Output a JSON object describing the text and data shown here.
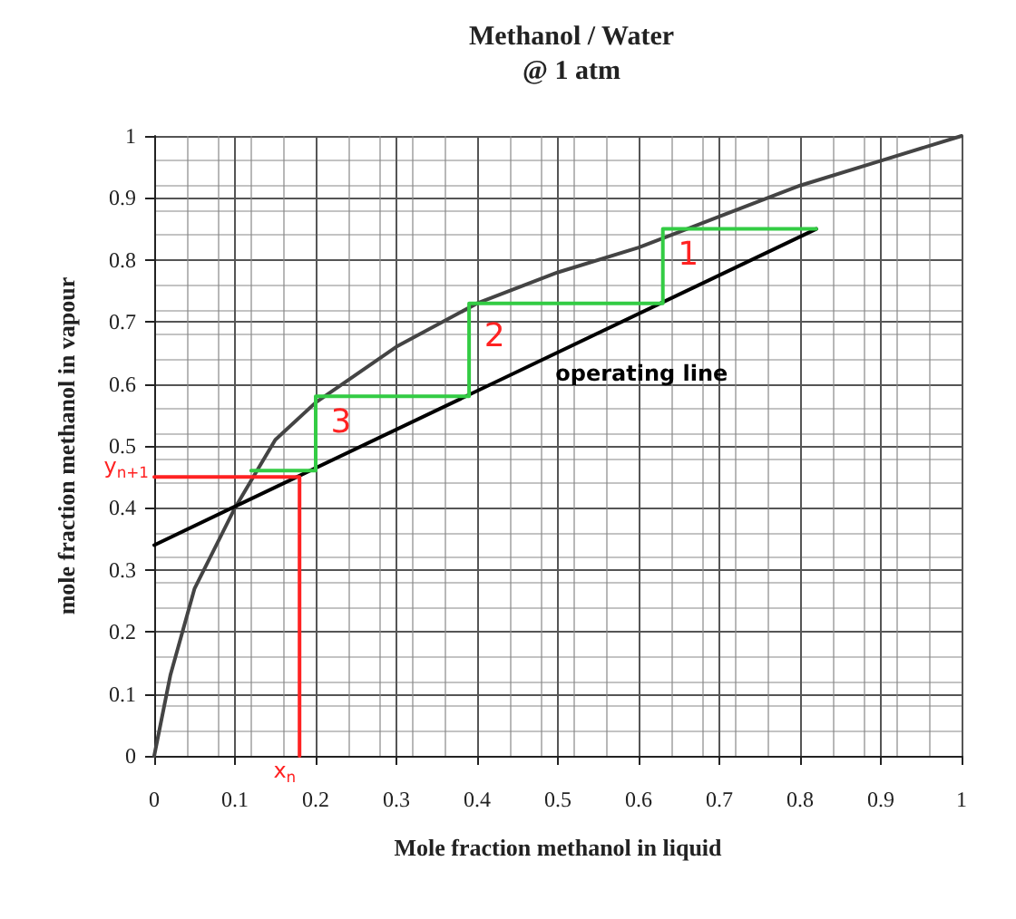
{
  "chart_data": {
    "type": "line",
    "title": "Methanol / Water",
    "subtitle": "@ 1 atm",
    "xlabel": "Mole fraction methanol in liquid",
    "ylabel": "mole fraction methanol in vapour",
    "xlim": [
      0,
      1
    ],
    "ylim": [
      0,
      1
    ],
    "xticks": [
      0,
      0.1,
      0.2,
      0.3,
      0.4,
      0.5,
      0.6,
      0.7,
      0.8,
      0.9,
      1
    ],
    "yticks": [
      0,
      0.1,
      0.2,
      0.3,
      0.4,
      0.5,
      0.6,
      0.7,
      0.8,
      0.9,
      1
    ],
    "grid": true,
    "legend": false,
    "marker": "none",
    "line_style": "solid",
    "series": [
      {
        "color": "#444444",
        "x": [
          0,
          0.02,
          0.05,
          0.1,
          0.15,
          0.2,
          0.3,
          0.4,
          0.5,
          0.6,
          0.7,
          0.8,
          0.9,
          1
        ],
        "values": [
          0,
          0.13,
          0.27,
          0.4,
          0.51,
          0.57,
          0.66,
          0.73,
          0.78,
          0.82,
          0.87,
          0.92,
          0.96,
          1
        ]
      },
      {
        "name": "operating line",
        "color": "#000000",
        "x": [
          0,
          0.82
        ],
        "values": [
          0.34,
          0.85
        ]
      },
      {
        "color": "#33cc44",
        "x": [
          0.82,
          0.63,
          0.63,
          0.39,
          0.39,
          0.2,
          0.2,
          0.12
        ],
        "values": [
          0.85,
          0.85,
          0.73,
          0.73,
          0.58,
          0.58,
          0.46,
          0.46
        ]
      },
      {
        "color": "#ff2222",
        "x": [
          0,
          0.18,
          0.18
        ],
        "values": [
          0.45,
          0.45,
          0
        ]
      }
    ],
    "annotations": [
      "1",
      "2",
      "3",
      {
        "text": "y$_{n+1}$",
        "x": 0,
        "y": 0.45
      },
      {
        "text": "x$_{n}$",
        "x": 0.18,
        "y": 0
      }
    ]
  }
}
